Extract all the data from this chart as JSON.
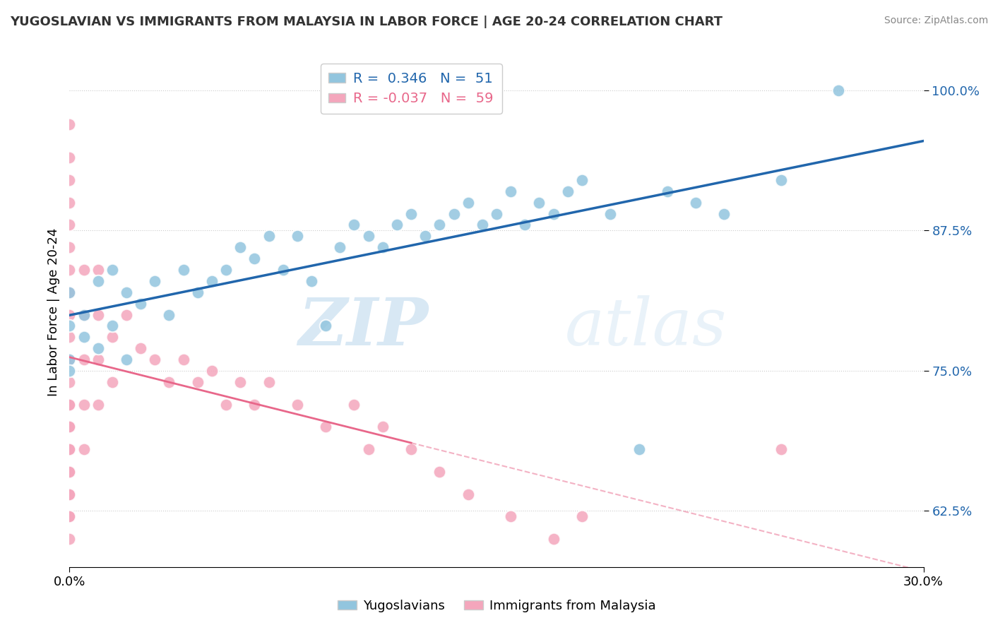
{
  "title": "YUGOSLAVIAN VS IMMIGRANTS FROM MALAYSIA IN LABOR FORCE | AGE 20-24 CORRELATION CHART",
  "source": "Source: ZipAtlas.com",
  "ylabel": "In Labor Force | Age 20-24",
  "xmin": 0.0,
  "xmax": 0.3,
  "ymin": 0.575,
  "ymax": 1.03,
  "yticks": [
    0.625,
    0.75,
    0.875,
    1.0
  ],
  "ytick_labels": [
    "62.5%",
    "75.0%",
    "87.5%",
    "100.0%"
  ],
  "xticks": [
    0.0,
    0.3
  ],
  "xtick_labels": [
    "0.0%",
    "30.0%"
  ],
  "color_blue": "#92c5de",
  "color_pink": "#f4a6bc",
  "line_blue": "#2166ac",
  "line_pink": "#e8678a",
  "r_blue": 0.346,
  "n_blue": 51,
  "r_pink": -0.037,
  "n_pink": 59,
  "legend_labels": [
    "Yugoslavians",
    "Immigrants from Malaysia"
  ],
  "watermark_zip": "ZIP",
  "watermark_atlas": "atlas",
  "blue_x": [
    0.0,
    0.0,
    0.0,
    0.0,
    0.005,
    0.005,
    0.01,
    0.01,
    0.015,
    0.015,
    0.02,
    0.02,
    0.025,
    0.03,
    0.035,
    0.04,
    0.045,
    0.05,
    0.055,
    0.06,
    0.065,
    0.07,
    0.075,
    0.08,
    0.085,
    0.09,
    0.095,
    0.1,
    0.105,
    0.11,
    0.115,
    0.12,
    0.125,
    0.13,
    0.135,
    0.14,
    0.145,
    0.15,
    0.155,
    0.16,
    0.165,
    0.17,
    0.175,
    0.18,
    0.19,
    0.2,
    0.21,
    0.22,
    0.23,
    0.25,
    0.27
  ],
  "blue_y": [
    0.82,
    0.79,
    0.76,
    0.75,
    0.78,
    0.8,
    0.77,
    0.83,
    0.79,
    0.84,
    0.76,
    0.82,
    0.81,
    0.83,
    0.8,
    0.84,
    0.82,
    0.83,
    0.84,
    0.86,
    0.85,
    0.87,
    0.84,
    0.87,
    0.83,
    0.79,
    0.86,
    0.88,
    0.87,
    0.86,
    0.88,
    0.89,
    0.87,
    0.88,
    0.89,
    0.9,
    0.88,
    0.89,
    0.91,
    0.88,
    0.9,
    0.89,
    0.91,
    0.92,
    0.89,
    0.68,
    0.91,
    0.9,
    0.89,
    0.92,
    1.0
  ],
  "pink_x": [
    0.0,
    0.0,
    0.0,
    0.0,
    0.0,
    0.0,
    0.0,
    0.0,
    0.0,
    0.0,
    0.0,
    0.0,
    0.0,
    0.0,
    0.0,
    0.0,
    0.0,
    0.0,
    0.0,
    0.0,
    0.0,
    0.0,
    0.0,
    0.0,
    0.0,
    0.005,
    0.005,
    0.005,
    0.005,
    0.005,
    0.01,
    0.01,
    0.01,
    0.01,
    0.015,
    0.015,
    0.02,
    0.025,
    0.03,
    0.035,
    0.04,
    0.045,
    0.05,
    0.055,
    0.06,
    0.065,
    0.07,
    0.08,
    0.09,
    0.1,
    0.105,
    0.11,
    0.12,
    0.13,
    0.14,
    0.155,
    0.17,
    0.18,
    0.25
  ],
  "pink_y": [
    0.97,
    0.94,
    0.92,
    0.9,
    0.88,
    0.86,
    0.84,
    0.82,
    0.8,
    0.78,
    0.76,
    0.74,
    0.72,
    0.7,
    0.68,
    0.66,
    0.64,
    0.62,
    0.6,
    0.62,
    0.64,
    0.66,
    0.68,
    0.7,
    0.72,
    0.84,
    0.8,
    0.76,
    0.72,
    0.68,
    0.84,
    0.8,
    0.76,
    0.72,
    0.78,
    0.74,
    0.8,
    0.77,
    0.76,
    0.74,
    0.76,
    0.74,
    0.75,
    0.72,
    0.74,
    0.72,
    0.74,
    0.72,
    0.7,
    0.72,
    0.68,
    0.7,
    0.68,
    0.66,
    0.64,
    0.62,
    0.6,
    0.62,
    0.68
  ]
}
